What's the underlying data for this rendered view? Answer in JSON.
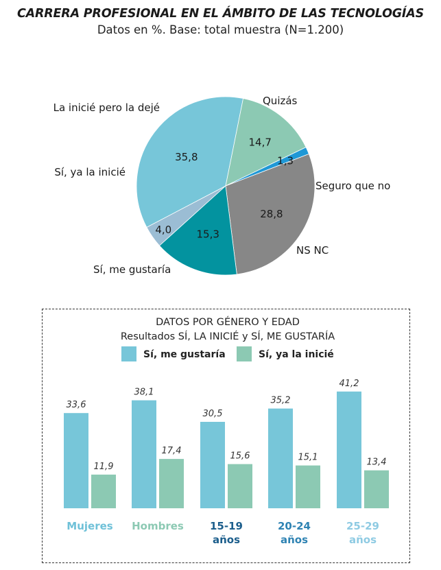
{
  "title": "CARRERA PROFESIONAL EN EL ÁMBITO DE LAS TECNOLOGÍAS",
  "subtitle": "Datos en %. Base: total muestra (N=1.200)",
  "chart_data": [
    {
      "type": "pie",
      "slices": [
        {
          "label": "Quizás",
          "value": 28.8,
          "value_label": "28,8",
          "color": "#878787"
        },
        {
          "label": "Seguro que no",
          "value": 15.3,
          "value_label": "15,3",
          "color": "#03939f"
        },
        {
          "label": "NS NC",
          "value": 4.0,
          "value_label": "4,0",
          "color": "#9bbdd4"
        },
        {
          "label": "Sí, me gustaría",
          "value": 35.8,
          "value_label": "35,8",
          "color": "#77c6d9"
        },
        {
          "label": "Sí, ya la inicié",
          "value": 14.7,
          "value_label": "14,7",
          "color": "#8cc9b3"
        },
        {
          "label": "La inicié pero la dejé",
          "value": 1.3,
          "value_label": "1,3",
          "color": "#1f98d6"
        }
      ]
    },
    {
      "type": "bar",
      "title": "DATOS POR GÉNERO Y EDAD",
      "subtitle": "Resultados SÍ, LA INICIÉ y SÍ, ME GUSTARÍA",
      "ylim": [
        0,
        45
      ],
      "legend_position": "top",
      "categories": [
        {
          "line1": "Mujeres",
          "line2": "",
          "color": "#6fc1d8"
        },
        {
          "line1": "Hombres",
          "line2": "",
          "color": "#8cc9b3"
        },
        {
          "line1": "15-19",
          "line2": "años",
          "color": "#1c5e8c"
        },
        {
          "line1": "20-24",
          "line2": "años",
          "color": "#2f83b3"
        },
        {
          "line1": "25-29",
          "line2": "años",
          "color": "#8fcbe3"
        }
      ],
      "series": [
        {
          "name": "Sí, me gustaría",
          "color": "#77c6d9",
          "values": [
            33.6,
            38.1,
            30.5,
            35.2,
            41.2
          ],
          "value_labels": [
            "33,6",
            "38,1",
            "30,5",
            "35,2",
            "41,2"
          ]
        },
        {
          "name": "Sí, ya la inicié",
          "color": "#8cc9b3",
          "values": [
            11.9,
            17.4,
            15.6,
            15.1,
            13.4
          ],
          "value_labels": [
            "11,9",
            "17,4",
            "15,6",
            "15,1",
            "13,4"
          ]
        }
      ]
    }
  ]
}
